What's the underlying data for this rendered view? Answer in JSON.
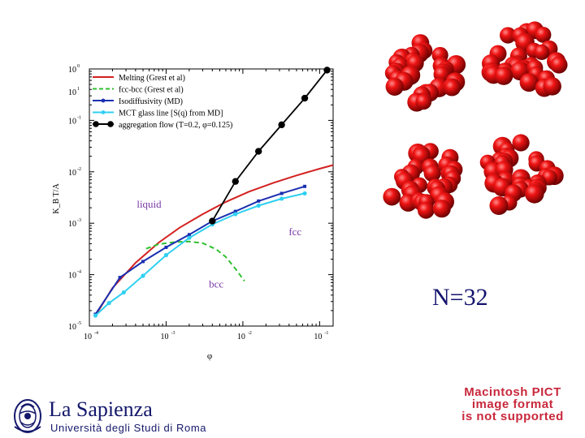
{
  "chart_data": {
    "type": "line",
    "xlabel": "φ",
    "ylabel": "K_B T/A",
    "x_scale": "log",
    "y_scale": "log",
    "xlim": [
      0.0001,
      0.15
    ],
    "ylim": [
      1e-05,
      1
    ],
    "x_ticks": [
      "10",
      "10",
      "10",
      "10"
    ],
    "x_tick_exponents": [
      "-4",
      "-3",
      "-2",
      "-1"
    ],
    "y_ticks": [
      "10",
      "10",
      "10",
      "10",
      "10",
      "10"
    ],
    "y_tick_exponents": [
      "-5",
      "-4",
      "-3",
      "-2",
      "-1",
      "0"
    ],
    "y_tick_1": "10",
    "y_tick_1_exp": "1",
    "legend_position": "top-left",
    "series": [
      {
        "name": "Melting  (Grest et al)",
        "color": "#d42020",
        "style": "solid",
        "x": [
          0.00012,
          0.0002,
          0.0004,
          0.0008,
          0.0015,
          0.003,
          0.006,
          0.012,
          0.025,
          0.05,
          0.1,
          0.15
        ],
        "y": [
          1.6e-05,
          5.5e-05,
          0.00017,
          0.00042,
          0.00082,
          0.0015,
          0.0026,
          0.0041,
          0.0061,
          0.0085,
          0.0115,
          0.0135
        ]
      },
      {
        "name": "fcc-bcc (Grest et al)",
        "color": "#30c030",
        "style": "dashed",
        "x": [
          0.00055,
          0.0008,
          0.0013,
          0.002,
          0.003,
          0.0045,
          0.006,
          0.008,
          0.0105
        ],
        "y": [
          0.00032,
          0.00039,
          0.00043,
          0.00044,
          0.00041,
          0.00031,
          0.00022,
          0.00013,
          7.5e-05
        ]
      },
      {
        "name": "Isodiffusivity (MD)",
        "color": "#1a2fb0",
        "style": "solid-marker",
        "x": [
          0.00012,
          0.00025,
          0.0005,
          0.001,
          0.002,
          0.004,
          0.008,
          0.016,
          0.032,
          0.064
        ],
        "y": [
          1.7e-05,
          8.8e-05,
          0.00018,
          0.00034,
          0.0006,
          0.0011,
          0.0017,
          0.0027,
          0.0038,
          0.0052
        ]
      },
      {
        "name": "MCT glass line [S(q) from MD]",
        "color": "#30d0f0",
        "style": "solid-marker",
        "x": [
          0.00012,
          0.00018,
          0.00028,
          0.0005,
          0.001,
          0.002,
          0.004,
          0.008,
          0.016,
          0.032,
          0.064
        ],
        "y": [
          1.6e-05,
          2.8e-05,
          4.5e-05,
          9.5e-05,
          0.00024,
          0.00052,
          0.00095,
          0.0015,
          0.0022,
          0.003,
          0.0038
        ]
      },
      {
        "name": "aggregation flow (T=0.2, φ=0.125)",
        "color": "#000000",
        "style": "solid-marker",
        "x": [
          0.004,
          0.008,
          0.016,
          0.032,
          0.064,
          0.125
        ],
        "y": [
          0.0011,
          0.0065,
          0.025,
          0.082,
          0.27,
          0.95
        ]
      }
    ],
    "annotations": [
      {
        "text": "liquid",
        "x": 0.0006,
        "y": 0.002,
        "color": "#7a3aa8"
      },
      {
        "text": "fcc",
        "x": 0.048,
        "y": 0.00058,
        "color": "#7a3aa8"
      },
      {
        "text": "bcc",
        "x": 0.0045,
        "y": 5.6e-05,
        "color": "#7a3aa8"
      }
    ]
  },
  "cluster_label": "N=32",
  "pict_message": [
    "Macintosh PICT",
    "image format",
    "is not supported"
  ],
  "logo": {
    "title": "La Sapienza",
    "subtitle": "Università degli Studi di Roma"
  },
  "colors": {
    "cluster_red": "#e01010",
    "brand_blue": "#14186b",
    "pict_red": "#c8283c"
  }
}
